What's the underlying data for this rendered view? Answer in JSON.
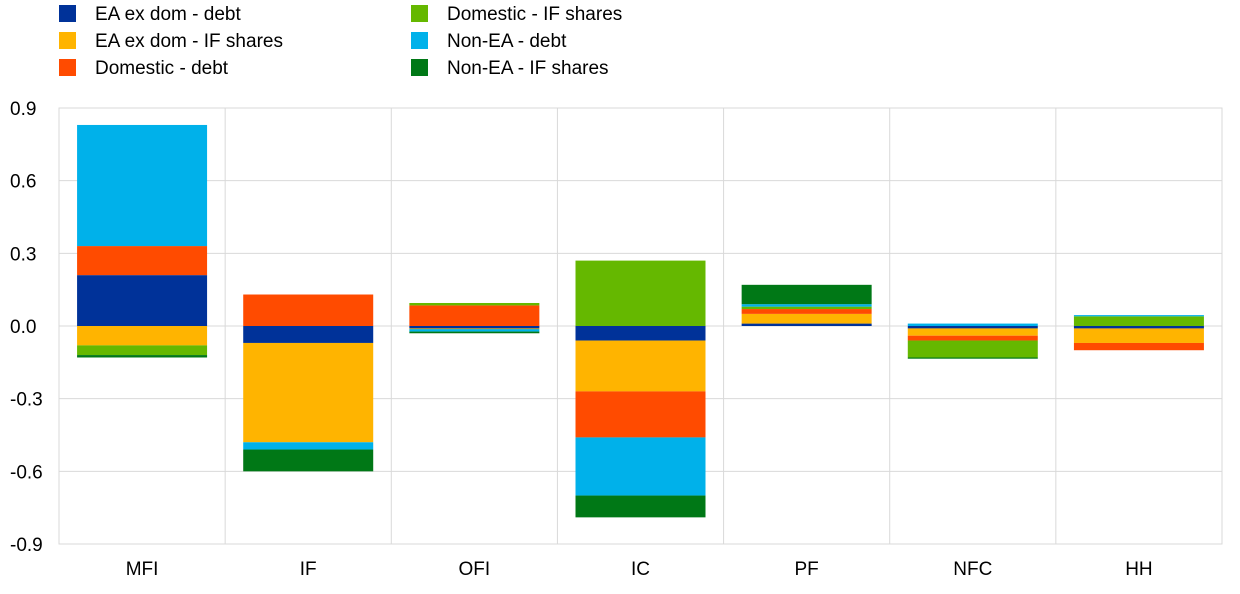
{
  "chart_data": {
    "type": "bar",
    "stacked": true,
    "categories": [
      "MFI",
      "IF",
      "OFI",
      "IC",
      "PF",
      "NFC",
      "HH"
    ],
    "ylim": [
      -0.9,
      0.9
    ],
    "yticks": [
      "0.9",
      "0.6",
      "0.3",
      "0.0",
      "-0.3",
      "-0.6",
      "-0.9"
    ],
    "ytick_values": [
      0.9,
      0.6,
      0.3,
      0.0,
      -0.3,
      -0.6,
      -0.9
    ],
    "grid": true,
    "legend_position": "top-left",
    "series": [
      {
        "name": "EA ex dom - debt",
        "color": "#003299",
        "values": [
          0.21,
          -0.07,
          -0.01,
          -0.06,
          0.01,
          -0.01,
          -0.01
        ]
      },
      {
        "name": "EA ex dom - IF shares",
        "color": "#FFB400",
        "values": [
          -0.08,
          -0.41,
          -0.003,
          -0.21,
          0.04,
          -0.03,
          -0.06
        ]
      },
      {
        "name": "Domestic - debt",
        "color": "#FF4B00",
        "values": [
          0.12,
          0.13,
          0.085,
          -0.19,
          0.02,
          -0.02,
          -0.03
        ]
      },
      {
        "name": "Domestic - IF shares",
        "color": "#65B800",
        "values": [
          -0.04,
          0.0,
          0.01,
          0.27,
          0.01,
          -0.07,
          0.04
        ]
      },
      {
        "name": "Non-EA - debt",
        "color": "#00B1EA",
        "values": [
          0.5,
          -0.03,
          -0.01,
          -0.24,
          0.01,
          0.01,
          0.005
        ]
      },
      {
        "name": "Non-EA - IF shares",
        "color": "#007816",
        "values": [
          -0.01,
          -0.09,
          -0.007,
          -0.09,
          0.08,
          -0.005,
          0.0
        ]
      }
    ]
  }
}
